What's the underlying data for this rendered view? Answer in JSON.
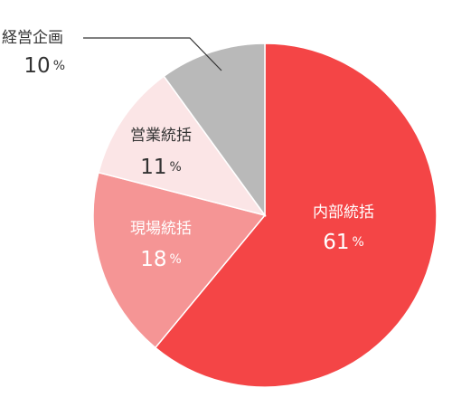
{
  "chart_data": {
    "type": "pie",
    "categories": [
      "内部統括",
      "現場統括",
      "営業統括",
      "経営企画"
    ],
    "values": [
      61,
      18,
      11,
      10
    ],
    "unit": "%",
    "colors": [
      "#f44546",
      "#f59595",
      "#fbe5e6",
      "#b9b9b9"
    ],
    "label_colors": [
      "#ffffff",
      "#ffffff",
      "#333333",
      "#333333"
    ],
    "start_angle": 0,
    "direction": "clockwise"
  }
}
